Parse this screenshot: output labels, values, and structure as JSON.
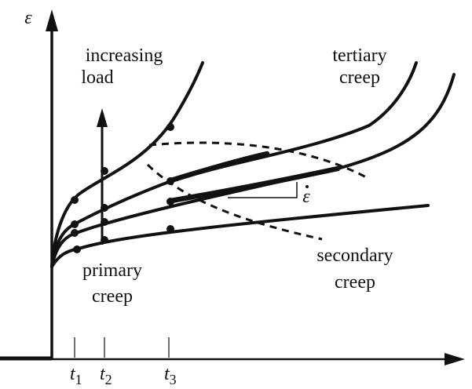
{
  "axis_label": "ε",
  "labels": {
    "increasing_load": [
      "increasing",
      "load"
    ],
    "tertiary_creep": [
      "tertiary",
      "creep"
    ],
    "primary_creep": [
      "primary",
      "creep"
    ],
    "secondary_creep": [
      "secondary",
      "creep"
    ],
    "strain_rate": "ε"
  },
  "ticks": [
    {
      "main": "t",
      "sub": "1"
    },
    {
      "main": "t",
      "sub": "2"
    },
    {
      "main": "t",
      "sub": "3"
    }
  ]
}
